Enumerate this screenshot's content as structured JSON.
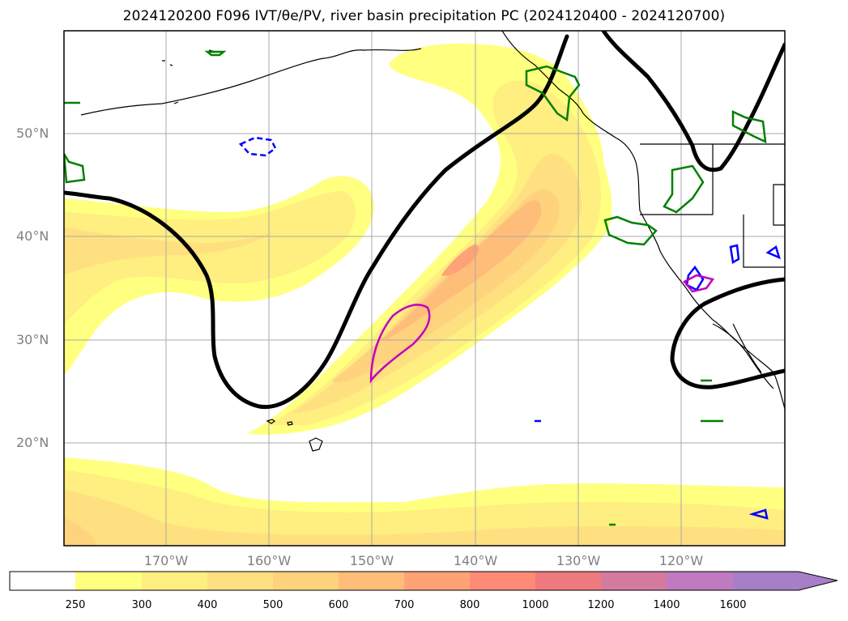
{
  "title": "2024120200 F096 IVT/θe/PV, river basin precipitation PC (2024120400 - 2024120700)",
  "map": {
    "lat_labels": [
      "50°N",
      "40°N",
      "30°N",
      "20°N"
    ],
    "lon_labels": [
      "170°W",
      "160°W",
      "150°W",
      "140°W",
      "130°W",
      "120°W"
    ],
    "colors": {
      "ivt_250": "#ffff80",
      "ivt_300": "#ffee80",
      "ivt_400": "#ffe080",
      "ivt_500": "#ffd27e",
      "ivt_600": "#ffbd7a",
      "ivt_700": "#ffa377",
      "theta_e_contour": "#000000",
      "green_contour": "#008000",
      "blue_contour": "#0000ff",
      "magenta_contour": "#c000c0"
    }
  },
  "colorbar": {
    "labels": [
      "250",
      "300",
      "400",
      "500",
      "600",
      "700",
      "800",
      "1000",
      "1200",
      "1400",
      "1600"
    ],
    "colors": [
      "#ffffff",
      "#ffff80",
      "#ffee80",
      "#ffe080",
      "#ffd27e",
      "#ffbd7a",
      "#ffa377",
      "#ff8a76",
      "#ee7a80",
      "#d57a9f",
      "#c07abf",
      "#a77ec8"
    ]
  }
}
